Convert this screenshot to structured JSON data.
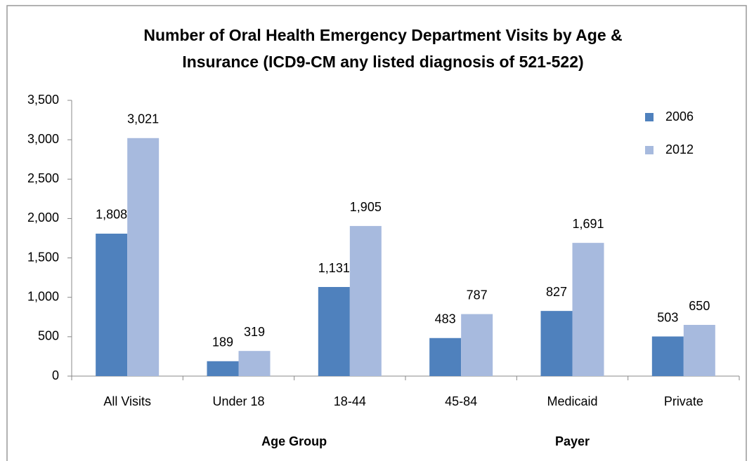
{
  "chart_data": {
    "type": "bar",
    "title": [
      "Number of Oral Health Emergency Department Visits by Age &",
      "Insurance (ICD9-CM any listed diagnosis of 521-522)"
    ],
    "categories": [
      "All Visits",
      "Under 18",
      "18-44",
      "45-84",
      "Medicaid",
      "Private"
    ],
    "series": [
      {
        "name": "2006",
        "color": "#4f81bd",
        "values": [
          1808,
          189,
          1131,
          483,
          827,
          503
        ],
        "value_labels": [
          "1,808",
          "189",
          "1,131",
          "483",
          "827",
          "503"
        ]
      },
      {
        "name": "2012",
        "color": "#a7bade",
        "values": [
          3021,
          319,
          1905,
          787,
          1691,
          650
        ],
        "value_labels": [
          "3,021",
          "319",
          "1,905",
          "787",
          "1,691",
          "650"
        ]
      }
    ],
    "ylim": [
      0,
      3500
    ],
    "yticks": [
      0,
      500,
      {
        "value": 1000,
        "label": "1,000"
      },
      {
        "value": 1500,
        "label": "1,500"
      },
      {
        "value": 2000,
        "label": "2,000"
      },
      {
        "value": 2500,
        "label": "2,500"
      },
      {
        "value": 3000,
        "label": "3,000"
      },
      {
        "value": 3500,
        "label": "3,500"
      }
    ],
    "annotations": [
      "Age Group",
      "Payer"
    ],
    "legend": "top-right"
  }
}
